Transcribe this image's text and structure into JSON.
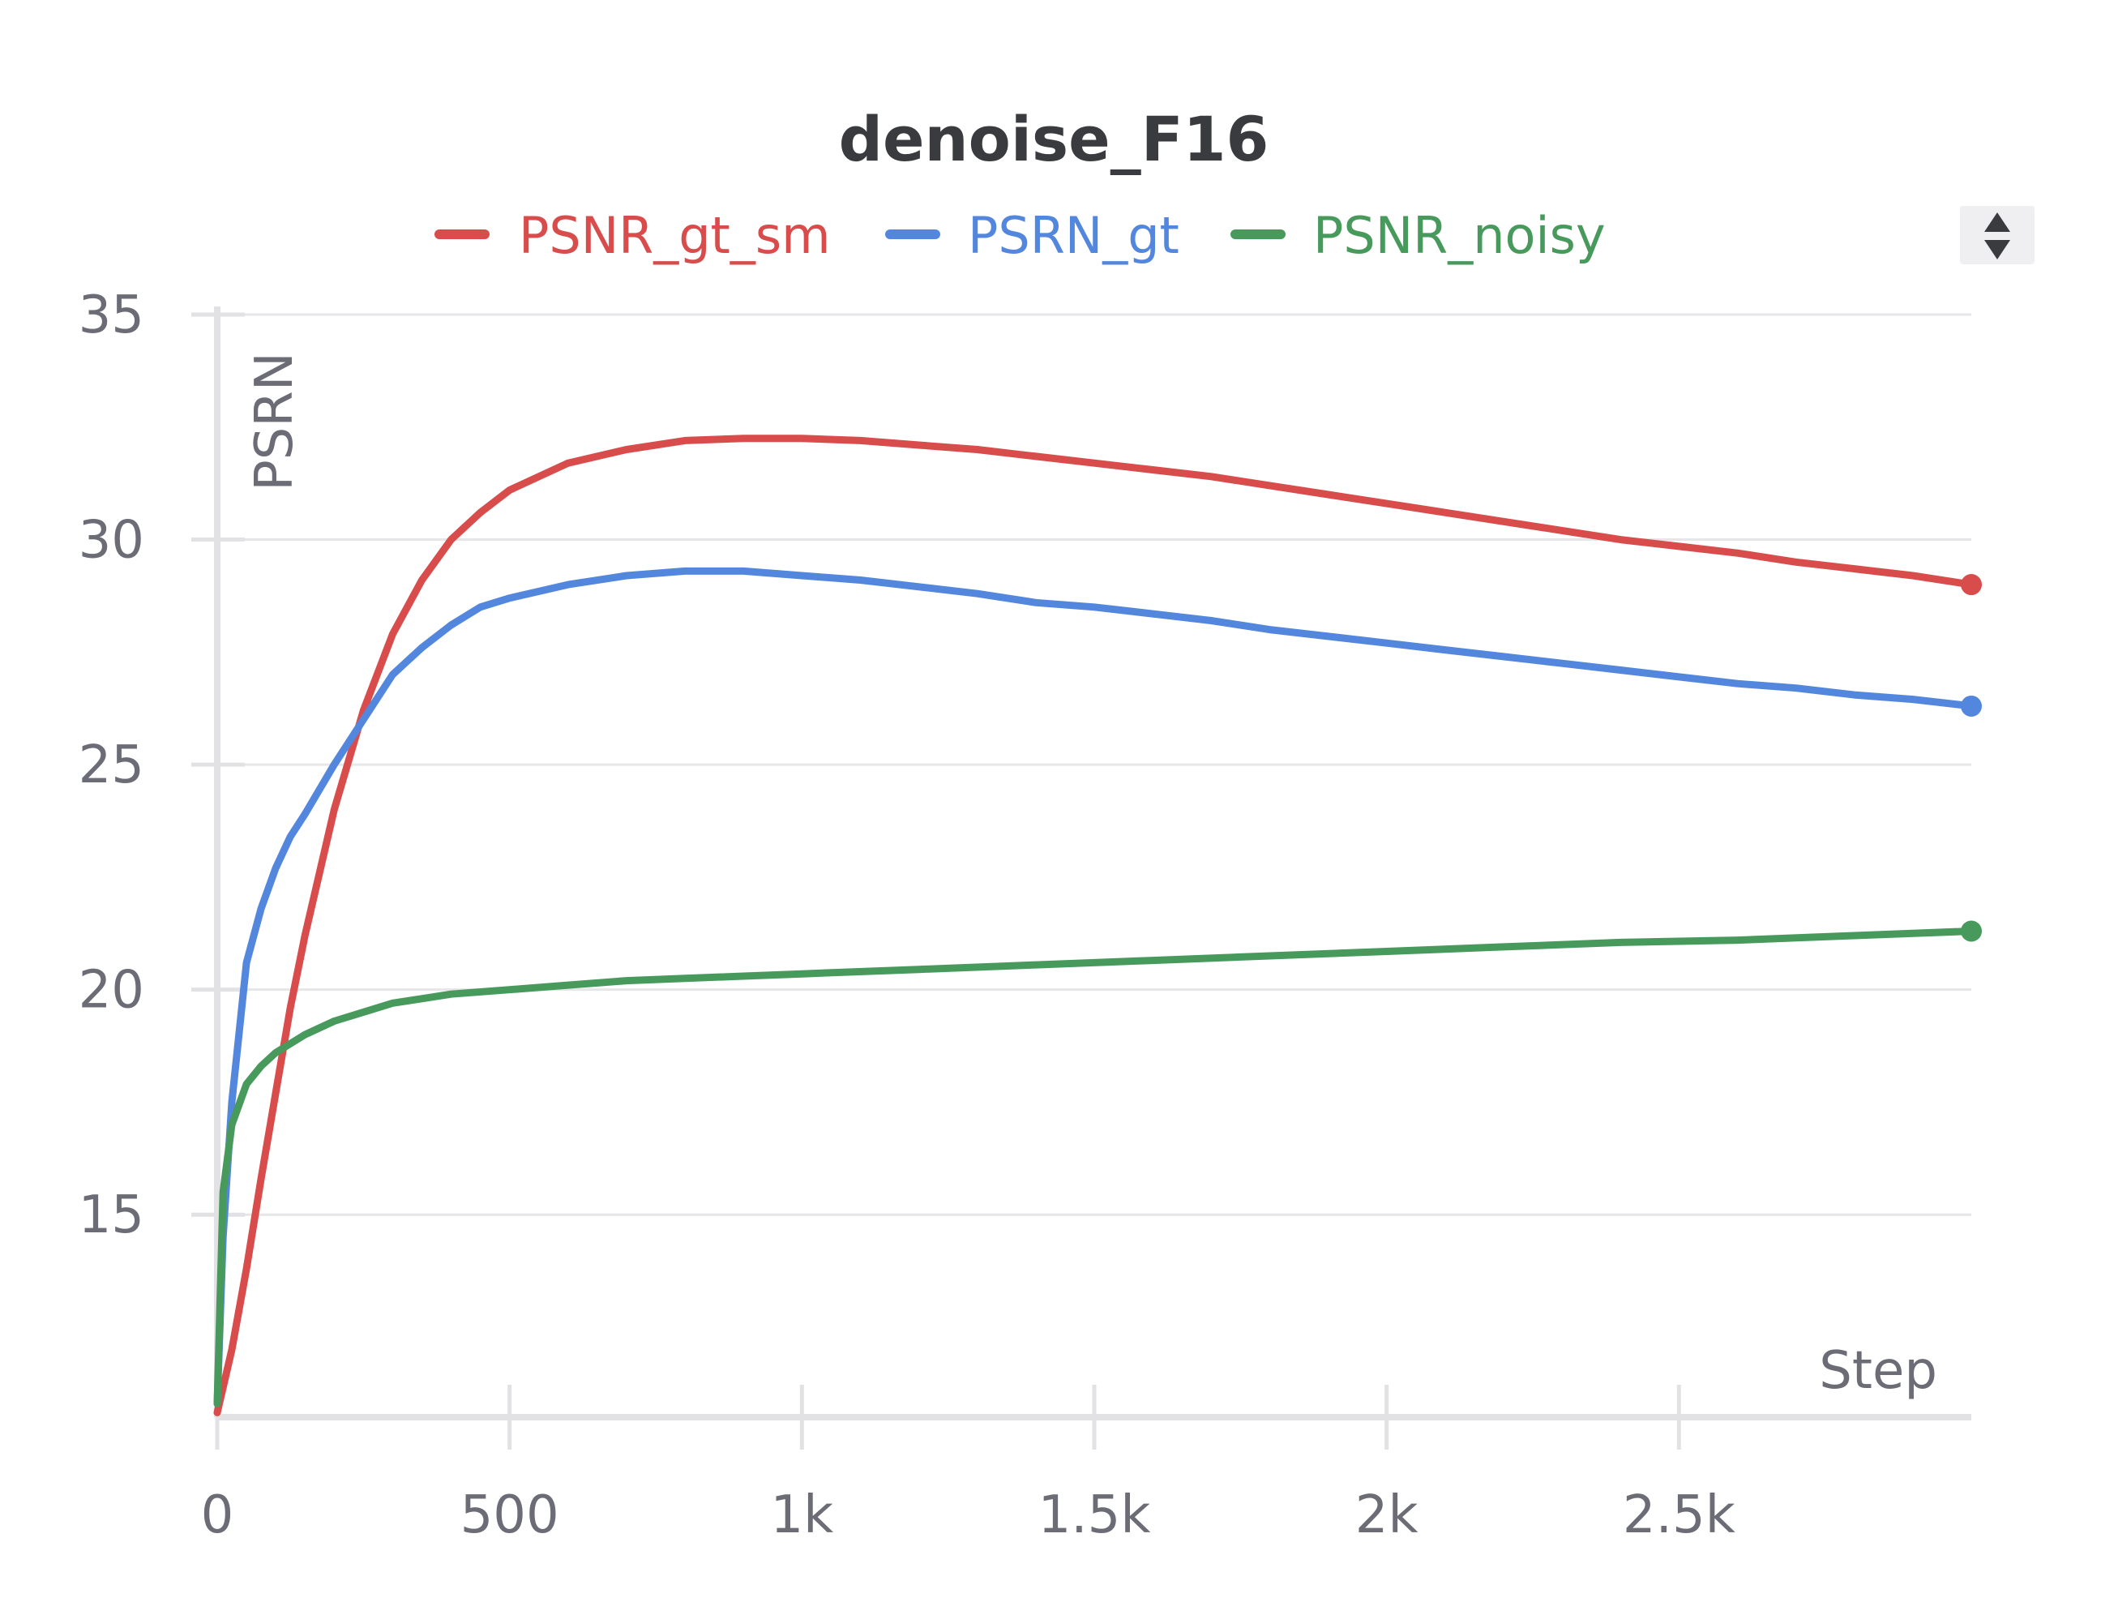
{
  "chart_data": {
    "type": "line",
    "title": "denoise_F16",
    "xlabel": "Step",
    "ylabel": "PSRN",
    "xlim": [
      0,
      3000
    ],
    "ylim": [
      10.5,
      35
    ],
    "x_ticks": [
      {
        "value": 0,
        "label": "0"
      },
      {
        "value": 500,
        "label": "500"
      },
      {
        "value": 1000,
        "label": "1k"
      },
      {
        "value": 1500,
        "label": "1.5k"
      },
      {
        "value": 2000,
        "label": "2k"
      },
      {
        "value": 2500,
        "label": "2.5k"
      }
    ],
    "y_ticks": [
      {
        "value": 15,
        "label": "15"
      },
      {
        "value": 20,
        "label": "20"
      },
      {
        "value": 25,
        "label": "25"
      },
      {
        "value": 30,
        "label": "30"
      },
      {
        "value": 35,
        "label": "35"
      }
    ],
    "grid": true,
    "legend_position": "top",
    "series": [
      {
        "name": "PSNR_gt_sm",
        "color": "#d94c4c",
        "x": [
          0,
          25,
          50,
          75,
          100,
          125,
          150,
          200,
          250,
          300,
          350,
          400,
          450,
          500,
          600,
          700,
          800,
          900,
          1000,
          1100,
          1200,
          1300,
          1400,
          1500,
          1600,
          1700,
          1800,
          1900,
          2000,
          2100,
          2200,
          2300,
          2400,
          2500,
          2600,
          2700,
          2800,
          2900,
          3000
        ],
        "y": [
          10.6,
          12.0,
          13.8,
          15.8,
          17.7,
          19.6,
          21.2,
          24.0,
          26.2,
          27.9,
          29.1,
          30.0,
          30.6,
          31.1,
          31.7,
          32.0,
          32.2,
          32.25,
          32.25,
          32.2,
          32.1,
          32.0,
          31.85,
          31.7,
          31.55,
          31.4,
          31.2,
          31.0,
          30.8,
          30.6,
          30.4,
          30.2,
          30.0,
          29.85,
          29.7,
          29.5,
          29.35,
          29.2,
          29.0
        ]
      },
      {
        "name": "PSRN_gt",
        "color": "#5387dd",
        "x": [
          0,
          10,
          25,
          50,
          75,
          100,
          125,
          150,
          200,
          250,
          300,
          350,
          400,
          450,
          500,
          600,
          700,
          800,
          900,
          1000,
          1100,
          1200,
          1300,
          1400,
          1500,
          1600,
          1700,
          1800,
          1900,
          2000,
          2100,
          2200,
          2300,
          2400,
          2500,
          2600,
          2700,
          2800,
          2900,
          3000
        ],
        "y": [
          10.8,
          14.5,
          17.5,
          20.6,
          21.8,
          22.7,
          23.4,
          23.9,
          25.0,
          26.0,
          27.0,
          27.6,
          28.1,
          28.5,
          28.7,
          29.0,
          29.2,
          29.3,
          29.3,
          29.2,
          29.1,
          28.95,
          28.8,
          28.6,
          28.5,
          28.35,
          28.2,
          28.0,
          27.85,
          27.7,
          27.55,
          27.4,
          27.25,
          27.1,
          26.95,
          26.8,
          26.7,
          26.55,
          26.45,
          26.3
        ]
      },
      {
        "name": "PSNR_noisy",
        "color": "#489a5c",
        "x": [
          0,
          10,
          25,
          50,
          75,
          100,
          150,
          200,
          250,
          300,
          350,
          400,
          500,
          600,
          700,
          800,
          900,
          1000,
          1200,
          1400,
          1600,
          1800,
          2000,
          2200,
          2400,
          2600,
          2800,
          3000
        ],
        "y": [
          10.8,
          15.5,
          17.0,
          17.9,
          18.3,
          18.6,
          19.0,
          19.3,
          19.5,
          19.7,
          19.8,
          19.9,
          20.0,
          20.1,
          20.2,
          20.25,
          20.3,
          20.35,
          20.45,
          20.55,
          20.65,
          20.75,
          20.85,
          20.95,
          21.05,
          21.1,
          21.2,
          21.3
        ]
      }
    ]
  },
  "controls": {
    "sort_toggle_icon": "up-down-arrows-icon"
  }
}
